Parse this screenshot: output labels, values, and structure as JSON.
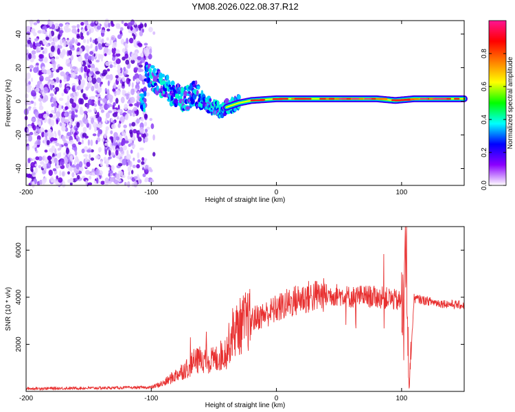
{
  "title": "YM08.2026.022.08.37.R12",
  "chart_data": [
    {
      "type": "heatmap",
      "title": "YM08.2026.022.08.37.R12",
      "xlabel": "Height of straight line (km)",
      "ylabel": "Frequency (Hz)",
      "xlim": [
        -200,
        150
      ],
      "ylim": [
        -50,
        48
      ],
      "xticks": [
        -200,
        -100,
        0,
        100
      ],
      "yticks": [
        -40,
        -20,
        0,
        20,
        40
      ],
      "xtick_labels": [
        "-200",
        "-100",
        "0",
        "100"
      ],
      "ytick_labels": [
        "-40",
        "-20",
        "0",
        "20",
        "40"
      ],
      "ridge": {
        "description_points_x_km": [
          -105,
          -95,
          -85,
          -75,
          -65,
          -55,
          -45,
          -38,
          -30,
          -20,
          -10,
          0,
          20,
          40,
          60,
          80,
          95,
          110,
          150
        ],
        "frequency_hz": [
          16,
          12,
          6,
          1,
          5,
          -2,
          -5,
          -3,
          -1,
          0.5,
          1,
          1.5,
          1.5,
          1.5,
          1.5,
          1.5,
          0.5,
          1.5,
          1.5
        ]
      },
      "noise_region_km": [
        -200,
        -100
      ],
      "colorbar": {
        "label": "Normalized spectral amplitude",
        "range": [
          0,
          1
        ],
        "ticks": [
          0.0,
          0.2,
          0.4,
          0.6,
          0.8
        ],
        "tick_labels": [
          "0.0",
          "0.2",
          "0.4",
          "0.6",
          "0.8"
        ],
        "colors": [
          "#ffffff",
          "#8b00ff",
          "#0000ff",
          "#00ffff",
          "#00ff00",
          "#ffff00",
          "#ff7f00",
          "#ff0000",
          "#ff1493"
        ]
      }
    },
    {
      "type": "line",
      "xlabel": "Height of straight line (km)",
      "ylabel": "SNR (10 * v/v)",
      "xlim": [
        -200,
        150
      ],
      "ylim": [
        0,
        7000
      ],
      "xticks": [
        -200,
        -100,
        0,
        100
      ],
      "yticks": [
        2000,
        4000,
        6000
      ],
      "xtick_labels": [
        "-200",
        "-100",
        "0",
        "100"
      ],
      "ytick_labels": [
        "2000",
        "4000",
        "6000"
      ],
      "color": "#e83030",
      "series": [
        {
          "name": "SNR",
          "x": [
            -200,
            -150,
            -100,
            -90,
            -80,
            -70,
            -60,
            -50,
            -40,
            -35,
            -25,
            -10,
            0,
            10,
            20,
            30,
            40,
            50,
            60,
            70,
            80,
            90,
            100,
            103,
            106,
            110,
            120,
            130,
            150
          ],
          "y": [
            120,
            140,
            170,
            350,
            700,
            1050,
            1400,
            1300,
            1700,
            2500,
            2950,
            3250,
            3500,
            3750,
            3950,
            4050,
            4100,
            4100,
            4000,
            4050,
            4000,
            3950,
            3800,
            6900,
            200,
            3950,
            3850,
            3750,
            3650
          ]
        }
      ]
    }
  ]
}
